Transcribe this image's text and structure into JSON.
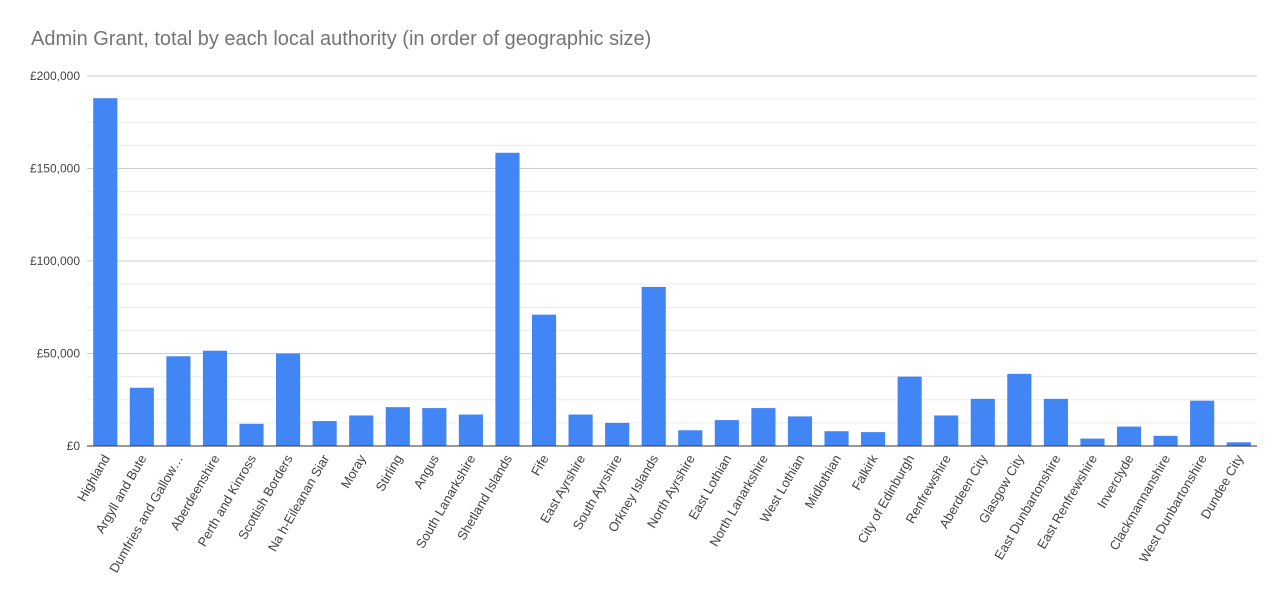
{
  "chart_data": {
    "type": "bar",
    "title": "Admin Grant, total by each local authority (in order of geographic size)",
    "xlabel": "",
    "ylabel": "",
    "ylim": [
      0,
      200000
    ],
    "y_ticks": [
      {
        "value": 0,
        "label": "£0"
      },
      {
        "value": 50000,
        "label": "£50,000"
      },
      {
        "value": 100000,
        "label": "£100,000"
      },
      {
        "value": 150000,
        "label": "£150,000"
      },
      {
        "value": 200000,
        "label": "£200,000"
      }
    ],
    "grid": true,
    "legend": "none",
    "bar_color": "#4285f4",
    "categories": [
      "Highland",
      "Argyll and Bute",
      "Dumfries and Gallow…",
      "Aberdeenshire",
      "Perth and Kinross",
      "Scottish Borders",
      "Na h-Eileanan Siar",
      "Moray",
      "Stirling",
      "Angus",
      "South Lanarkshire",
      "Shetland Islands",
      "Fife",
      "East Ayrshire",
      "South Ayrshire",
      "Orkney Islands",
      "North Ayrshire",
      "East Lothian",
      "North Lanarkshire",
      "West Lothian",
      "Midlothian",
      "Falkirk",
      "City of Edinburgh",
      "Renfrewshire",
      "Aberdeen City",
      "Glasgow City",
      "East Dunbartonshire",
      "East Renfrewshire",
      "Inverclyde",
      "Clackmannanshire",
      "West Dunbartonshire",
      "Dundee City"
    ],
    "values": [
      188000,
      31500,
      48500,
      51500,
      12000,
      50000,
      13500,
      16500,
      21000,
      20500,
      17000,
      158500,
      71000,
      17000,
      12500,
      86000,
      8500,
      14000,
      20500,
      16000,
      8000,
      7500,
      37500,
      16500,
      25500,
      39000,
      25500,
      4000,
      10500,
      5500,
      24500,
      2000
    ]
  }
}
